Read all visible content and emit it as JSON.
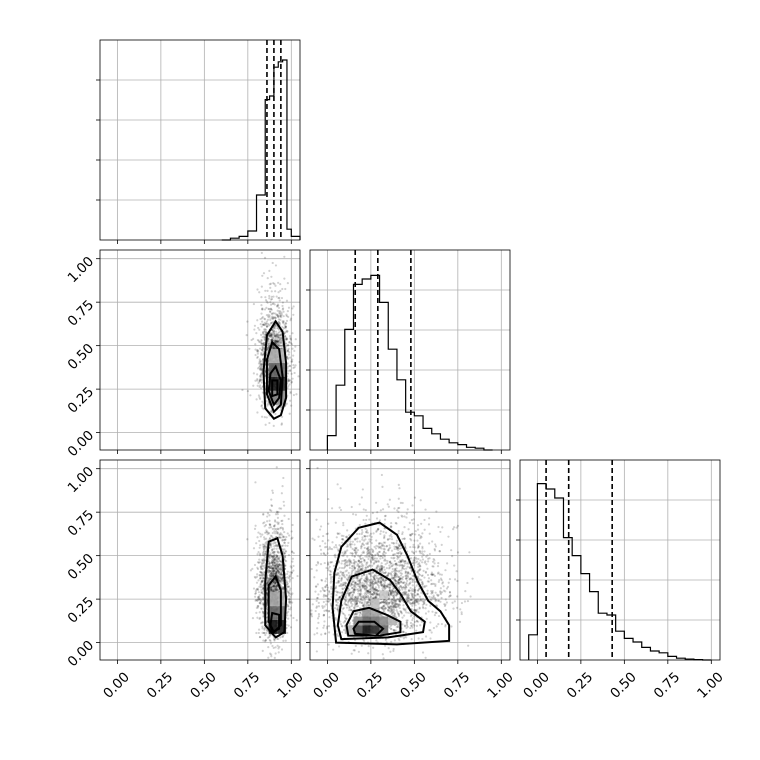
{
  "chart_data": {
    "type": "corner",
    "parameters": 3,
    "axis_range": [
      -0.1,
      1.05
    ],
    "tick_values": [
      0.0,
      0.25,
      0.5,
      0.75,
      1.0
    ],
    "tick_labels": [
      "0.00",
      "0.25",
      "0.50",
      "0.75",
      "1.00"
    ],
    "grid": true,
    "histograms": [
      {
        "param_index": 0,
        "bin_edges": [
          0.6,
          0.65,
          0.7,
          0.75,
          0.8,
          0.85,
          0.875,
          0.9,
          0.925,
          0.95,
          0.975,
          1.0,
          1.05
        ],
        "counts": [
          0,
          0.01,
          0.02,
          0.05,
          0.25,
          0.78,
          0.8,
          0.96,
          0.99,
          1.0,
          0.06,
          0.02
        ],
        "quantiles": [
          0.86,
          0.9,
          0.94
        ]
      },
      {
        "param_index": 1,
        "bin_edges": [
          0.0,
          0.05,
          0.1,
          0.15,
          0.2,
          0.25,
          0.3,
          0.35,
          0.4,
          0.45,
          0.5,
          0.55,
          0.6,
          0.65,
          0.7,
          0.75,
          0.8,
          0.85,
          0.9,
          0.95
        ],
        "counts": [
          0.08,
          0.36,
          0.67,
          0.92,
          0.95,
          0.97,
          0.82,
          0.56,
          0.39,
          0.21,
          0.19,
          0.12,
          0.09,
          0.06,
          0.04,
          0.03,
          0.015,
          0.01,
          0.0
        ],
        "quantiles": [
          0.16,
          0.29,
          0.48
        ]
      },
      {
        "param_index": 2,
        "bin_edges": [
          -0.05,
          0.0,
          0.05,
          0.1,
          0.15,
          0.2,
          0.25,
          0.3,
          0.35,
          0.4,
          0.45,
          0.5,
          0.55,
          0.6,
          0.65,
          0.7,
          0.75,
          0.8,
          0.85,
          0.9,
          0.95,
          1.0
        ],
        "counts": [
          0.14,
          0.98,
          0.95,
          0.9,
          0.68,
          0.58,
          0.48,
          0.38,
          0.26,
          0.25,
          0.16,
          0.12,
          0.1,
          0.07,
          0.05,
          0.04,
          0.02,
          0.01,
          0.005,
          0.002,
          0.0
        ],
        "quantiles": [
          0.05,
          0.18,
          0.43
        ]
      }
    ],
    "joint_panels": [
      {
        "x_param": 0,
        "y_param": 1,
        "scatter": {
          "x_center": 0.9,
          "x_sd": 0.045,
          "y_center": 0.33,
          "y_sd": 0.2,
          "count": 1600
        },
        "density_cells": [
          {
            "x": 0.87,
            "y": 0.24,
            "w": 0.05,
            "h": 0.08,
            "level": 0.9
          },
          {
            "x": 0.92,
            "y": 0.24,
            "w": 0.05,
            "h": 0.08,
            "level": 0.85
          },
          {
            "x": 0.87,
            "y": 0.32,
            "w": 0.05,
            "h": 0.08,
            "level": 0.6
          },
          {
            "x": 0.92,
            "y": 0.32,
            "w": 0.05,
            "h": 0.08,
            "level": 0.55
          },
          {
            "x": 0.87,
            "y": 0.16,
            "w": 0.05,
            "h": 0.08,
            "level": 0.5
          },
          {
            "x": 0.92,
            "y": 0.16,
            "w": 0.05,
            "h": 0.08,
            "level": 0.45
          },
          {
            "x": 0.87,
            "y": 0.4,
            "w": 0.05,
            "h": 0.08,
            "level": 0.3
          },
          {
            "x": 0.92,
            "y": 0.4,
            "w": 0.05,
            "h": 0.08,
            "level": 0.28
          }
        ],
        "contours": [
          [
            [
              0.9,
              0.08
            ],
            [
              0.94,
              0.1
            ],
            [
              0.97,
              0.2
            ],
            [
              0.97,
              0.4
            ],
            [
              0.95,
              0.58
            ],
            [
              0.91,
              0.64
            ],
            [
              0.86,
              0.56
            ],
            [
              0.84,
              0.35
            ],
            [
              0.85,
              0.14
            ],
            [
              0.9,
              0.08
            ]
          ],
          [
            [
              0.9,
              0.12
            ],
            [
              0.94,
              0.16
            ],
            [
              0.95,
              0.32
            ],
            [
              0.93,
              0.48
            ],
            [
              0.89,
              0.52
            ],
            [
              0.86,
              0.42
            ],
            [
              0.86,
              0.22
            ],
            [
              0.9,
              0.12
            ]
          ],
          [
            [
              0.9,
              0.16
            ],
            [
              0.93,
              0.2
            ],
            [
              0.94,
              0.3
            ],
            [
              0.91,
              0.38
            ],
            [
              0.88,
              0.34
            ],
            [
              0.87,
              0.24
            ],
            [
              0.9,
              0.16
            ]
          ],
          [
            [
              0.89,
              0.21
            ],
            [
              0.92,
              0.22
            ],
            [
              0.92,
              0.3
            ],
            [
              0.89,
              0.3
            ],
            [
              0.89,
              0.21
            ]
          ]
        ]
      },
      {
        "x_param": 0,
        "y_param": 2,
        "scatter": {
          "x_center": 0.9,
          "x_sd": 0.045,
          "y_center": 0.22,
          "y_sd": 0.22,
          "count": 1600
        },
        "density_cells": [
          {
            "x": 0.87,
            "y": 0.05,
            "w": 0.05,
            "h": 0.08,
            "level": 0.95
          },
          {
            "x": 0.92,
            "y": 0.05,
            "w": 0.05,
            "h": 0.08,
            "level": 0.9
          },
          {
            "x": 0.87,
            "y": 0.13,
            "w": 0.05,
            "h": 0.08,
            "level": 0.6
          },
          {
            "x": 0.92,
            "y": 0.13,
            "w": 0.05,
            "h": 0.08,
            "level": 0.55
          },
          {
            "x": 0.87,
            "y": 0.21,
            "w": 0.05,
            "h": 0.08,
            "level": 0.35
          },
          {
            "x": 0.92,
            "y": 0.21,
            "w": 0.05,
            "h": 0.08,
            "level": 0.3
          }
        ],
        "contours": [
          [
            [
              0.91,
              0.03
            ],
            [
              0.96,
              0.06
            ],
            [
              0.97,
              0.25
            ],
            [
              0.95,
              0.5
            ],
            [
              0.92,
              0.6
            ],
            [
              0.87,
              0.58
            ],
            [
              0.85,
              0.35
            ],
            [
              0.85,
              0.1
            ],
            [
              0.91,
              0.03
            ]
          ],
          [
            [
              0.9,
              0.06
            ],
            [
              0.94,
              0.1
            ],
            [
              0.94,
              0.3
            ],
            [
              0.91,
              0.38
            ],
            [
              0.87,
              0.33
            ],
            [
              0.87,
              0.12
            ],
            [
              0.9,
              0.06
            ]
          ],
          [
            [
              0.89,
              0.06
            ],
            [
              0.93,
              0.08
            ],
            [
              0.93,
              0.16
            ],
            [
              0.89,
              0.17
            ],
            [
              0.88,
              0.1
            ],
            [
              0.89,
              0.06
            ]
          ]
        ]
      },
      {
        "x_param": 1,
        "y_param": 2,
        "scatter": {
          "x_center": 0.3,
          "x_sd": 0.18,
          "y_center": 0.22,
          "y_sd": 0.22,
          "count": 2600
        },
        "density_cells": [
          {
            "x": 0.2,
            "y": 0.05,
            "w": 0.05,
            "h": 0.05,
            "level": 0.95
          },
          {
            "x": 0.25,
            "y": 0.05,
            "w": 0.05,
            "h": 0.05,
            "level": 0.85
          },
          {
            "x": 0.15,
            "y": 0.05,
            "w": 0.05,
            "h": 0.05,
            "level": 0.7
          },
          {
            "x": 0.3,
            "y": 0.05,
            "w": 0.05,
            "h": 0.05,
            "level": 0.6
          },
          {
            "x": 0.2,
            "y": 0.1,
            "w": 0.05,
            "h": 0.05,
            "level": 0.6
          },
          {
            "x": 0.25,
            "y": 0.1,
            "w": 0.05,
            "h": 0.05,
            "level": 0.55
          },
          {
            "x": 0.15,
            "y": 0.1,
            "w": 0.05,
            "h": 0.05,
            "level": 0.45
          },
          {
            "x": 0.3,
            "y": 0.1,
            "w": 0.05,
            "h": 0.05,
            "level": 0.45
          },
          {
            "x": 0.2,
            "y": 0.15,
            "w": 0.05,
            "h": 0.05,
            "level": 0.4
          },
          {
            "x": 0.25,
            "y": 0.15,
            "w": 0.05,
            "h": 0.05,
            "level": 0.35
          },
          {
            "x": 0.35,
            "y": 0.1,
            "w": 0.05,
            "h": 0.05,
            "level": 0.3
          },
          {
            "x": 0.1,
            "y": 0.05,
            "w": 0.05,
            "h": 0.05,
            "level": 0.3
          },
          {
            "x": 0.25,
            "y": 0.2,
            "w": 0.05,
            "h": 0.05,
            "level": 0.25
          },
          {
            "x": 0.3,
            "y": 0.25,
            "w": 0.05,
            "h": 0.05,
            "level": 0.2
          }
        ],
        "contours": [
          [
            [
              0.05,
              0.0
            ],
            [
              0.4,
              -0.01
            ],
            [
              0.7,
              0.01
            ],
            [
              0.7,
              0.1
            ],
            [
              0.65,
              0.18
            ],
            [
              0.58,
              0.24
            ],
            [
              0.52,
              0.35
            ],
            [
              0.46,
              0.5
            ],
            [
              0.4,
              0.62
            ],
            [
              0.3,
              0.69
            ],
            [
              0.18,
              0.66
            ],
            [
              0.08,
              0.55
            ],
            [
              0.04,
              0.4
            ],
            [
              0.03,
              0.2
            ],
            [
              0.05,
              0.0
            ]
          ],
          [
            [
              0.08,
              0.02
            ],
            [
              0.35,
              0.03
            ],
            [
              0.55,
              0.06
            ],
            [
              0.56,
              0.12
            ],
            [
              0.48,
              0.18
            ],
            [
              0.42,
              0.28
            ],
            [
              0.36,
              0.36
            ],
            [
              0.26,
              0.42
            ],
            [
              0.14,
              0.38
            ],
            [
              0.08,
              0.24
            ],
            [
              0.06,
              0.1
            ],
            [
              0.08,
              0.02
            ]
          ],
          [
            [
              0.12,
              0.04
            ],
            [
              0.3,
              0.04
            ],
            [
              0.42,
              0.06
            ],
            [
              0.42,
              0.12
            ],
            [
              0.34,
              0.16
            ],
            [
              0.24,
              0.2
            ],
            [
              0.15,
              0.18
            ],
            [
              0.11,
              0.1
            ],
            [
              0.12,
              0.04
            ]
          ],
          [
            [
              0.16,
              0.05
            ],
            [
              0.28,
              0.04
            ],
            [
              0.32,
              0.08
            ],
            [
              0.27,
              0.12
            ],
            [
              0.18,
              0.12
            ],
            [
              0.15,
              0.08
            ],
            [
              0.16,
              0.05
            ]
          ]
        ]
      }
    ]
  }
}
